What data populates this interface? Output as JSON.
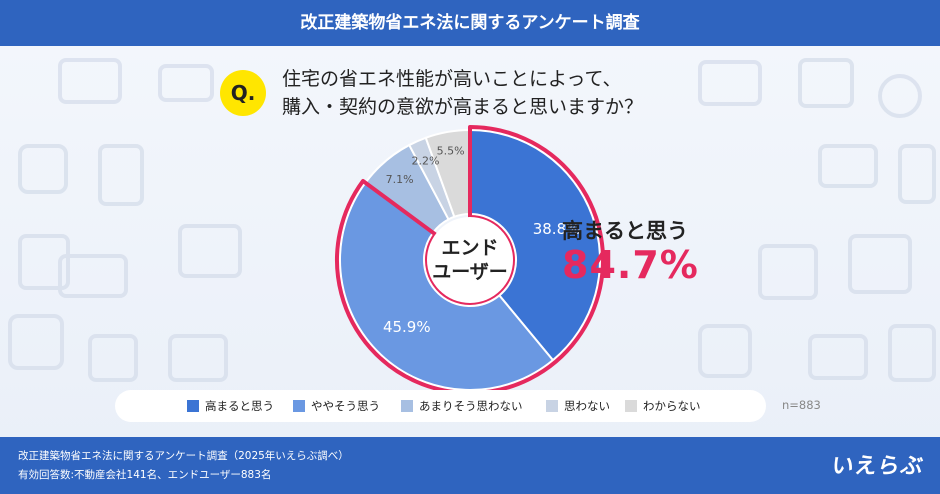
{
  "header": {
    "title": "改正建築物省エネ法に関するアンケート調査"
  },
  "question": {
    "badge": "Q.",
    "line1": "住宅の省エネ性能が高いことによって、",
    "line2": "購入・契約の意欲が高まると思いますか？"
  },
  "chart_data": {
    "type": "pie",
    "donut": true,
    "center_label": [
      "エンド",
      "ユーザー"
    ],
    "categories": [
      "高まると思う",
      "ややそう思う",
      "あまりそう思わない",
      "思わない",
      "わからない"
    ],
    "values": [
      38.8,
      45.9,
      7.1,
      2.2,
      5.5
    ],
    "value_labels": [
      "38.8%",
      "45.9%",
      "7.1%",
      "2.2%",
      "5.5%"
    ],
    "colors": [
      "#3b74d4",
      "#6a98e2",
      "#a7bfe2",
      "#c8d3e4",
      "#dadada"
    ],
    "label_colors": [
      "#ffffff",
      "#ffffff",
      "#555555",
      "#555555",
      "#555555"
    ],
    "highlight": {
      "label": "高まると思う",
      "value": "84.7%",
      "color": "#e5295e"
    },
    "legend_placement": "bottom",
    "n": "n=883"
  },
  "footer": {
    "line1": "改正建築物省エネ法に関するアンケート調査（2025年いえらぶ調べ）",
    "line2": "有効回答数:不動産会社141名、エンドユーザー883名",
    "logo": "いえらぶ"
  }
}
